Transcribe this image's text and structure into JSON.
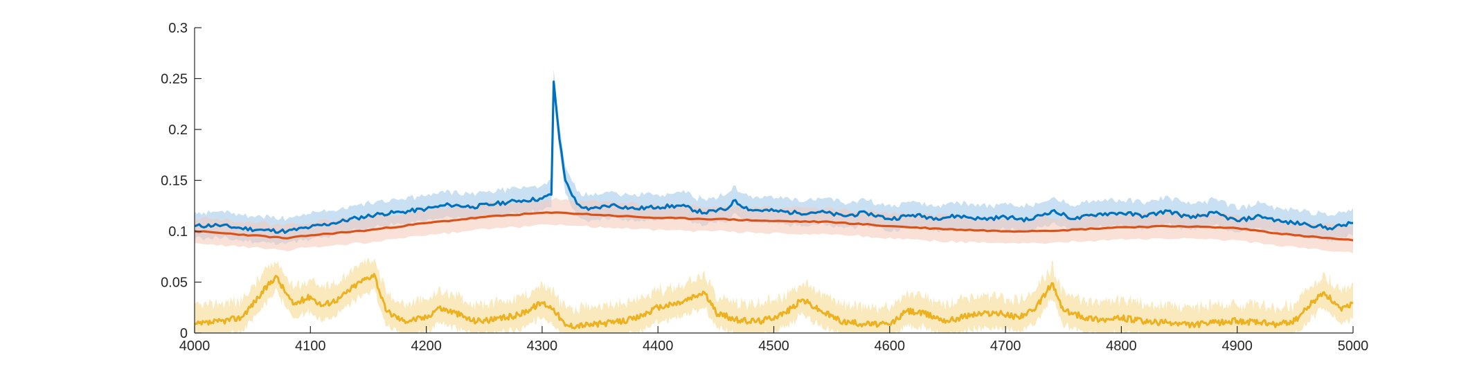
{
  "chart_data": {
    "type": "line",
    "title": "",
    "xlabel": "",
    "ylabel": "",
    "xlim": [
      4000,
      5000
    ],
    "ylim": [
      0,
      0.3
    ],
    "grid": false,
    "x_ticks": [
      "4000",
      "4100",
      "4200",
      "4300",
      "4400",
      "4500",
      "4600",
      "4700",
      "4800",
      "4900",
      "5000"
    ],
    "y_ticks": [
      "0",
      "0.05",
      "0.1",
      "0.15",
      "0.2",
      "0.25",
      "0.3"
    ],
    "x_tick_values": [
      4000,
      4100,
      4200,
      4300,
      4400,
      4500,
      4600,
      4700,
      4800,
      4900,
      5000
    ],
    "y_tick_values": [
      0,
      0.05,
      0.1,
      0.15,
      0.2,
      0.25,
      0.3
    ],
    "series": [
      {
        "color": "#0072BD",
        "band_color": "#9CC7EA",
        "x": [
          4000,
          4020,
          4040,
          4060,
          4080,
          4100,
          4120,
          4140,
          4160,
          4180,
          4200,
          4220,
          4240,
          4260,
          4280,
          4300,
          4308,
          4310,
          4315,
          4320,
          4330,
          4340,
          4360,
          4380,
          4400,
          4420,
          4440,
          4460,
          4465,
          4480,
          4500,
          4520,
          4540,
          4560,
          4580,
          4600,
          4620,
          4640,
          4660,
          4680,
          4700,
          4720,
          4740,
          4760,
          4780,
          4800,
          4820,
          4840,
          4860,
          4880,
          4900,
          4920,
          4940,
          4960,
          4980,
          5000
        ],
        "y": [
          0.105,
          0.106,
          0.103,
          0.101,
          0.1,
          0.104,
          0.108,
          0.113,
          0.117,
          0.119,
          0.122,
          0.126,
          0.124,
          0.127,
          0.13,
          0.132,
          0.136,
          0.247,
          0.19,
          0.15,
          0.127,
          0.121,
          0.126,
          0.122,
          0.124,
          0.125,
          0.118,
          0.122,
          0.13,
          0.121,
          0.12,
          0.118,
          0.119,
          0.115,
          0.118,
          0.112,
          0.116,
          0.113,
          0.115,
          0.112,
          0.114,
          0.111,
          0.12,
          0.112,
          0.117,
          0.118,
          0.115,
          0.12,
          0.113,
          0.118,
          0.11,
          0.115,
          0.109,
          0.107,
          0.103,
          0.108
        ],
        "band_halfwidth": 0.011
      },
      {
        "color": "#D95319",
        "band_color": "#F4C8B8",
        "x": [
          4000,
          4050,
          4080,
          4100,
          4150,
          4200,
          4250,
          4300,
          4320,
          4350,
          4400,
          4450,
          4500,
          4550,
          4600,
          4650,
          4700,
          4750,
          4800,
          4850,
          4900,
          4950,
          5000
        ],
        "y": [
          0.1,
          0.096,
          0.093,
          0.096,
          0.101,
          0.108,
          0.114,
          0.118,
          0.118,
          0.116,
          0.113,
          0.112,
          0.11,
          0.109,
          0.105,
          0.102,
          0.1,
          0.101,
          0.104,
          0.105,
          0.103,
          0.096,
          0.091
        ],
        "band_halfwidth": 0.011
      },
      {
        "color": "#EDB120",
        "band_color": "#F7DFA0",
        "x": [
          4000,
          4020,
          4040,
          4055,
          4070,
          4085,
          4100,
          4110,
          4125,
          4140,
          4155,
          4165,
          4180,
          4200,
          4210,
          4225,
          4240,
          4260,
          4280,
          4300,
          4310,
          4320,
          4340,
          4360,
          4380,
          4400,
          4420,
          4440,
          4450,
          4470,
          4490,
          4510,
          4525,
          4540,
          4560,
          4580,
          4600,
          4615,
          4630,
          4650,
          4670,
          4690,
          4710,
          4725,
          4740,
          4750,
          4770,
          4790,
          4800,
          4820,
          4840,
          4860,
          4880,
          4900,
          4920,
          4935,
          4950,
          4965,
          4975,
          4990,
          5000
        ],
        "y": [
          0.008,
          0.011,
          0.015,
          0.035,
          0.056,
          0.028,
          0.036,
          0.027,
          0.034,
          0.048,
          0.058,
          0.022,
          0.012,
          0.015,
          0.025,
          0.02,
          0.012,
          0.013,
          0.018,
          0.03,
          0.024,
          0.007,
          0.008,
          0.01,
          0.014,
          0.025,
          0.03,
          0.04,
          0.02,
          0.012,
          0.012,
          0.02,
          0.033,
          0.022,
          0.011,
          0.009,
          0.008,
          0.022,
          0.019,
          0.012,
          0.018,
          0.02,
          0.016,
          0.022,
          0.049,
          0.022,
          0.015,
          0.013,
          0.015,
          0.011,
          0.01,
          0.008,
          0.01,
          0.012,
          0.01,
          0.008,
          0.012,
          0.03,
          0.04,
          0.022,
          0.03
        ],
        "band_halfwidth": 0.012
      }
    ]
  }
}
